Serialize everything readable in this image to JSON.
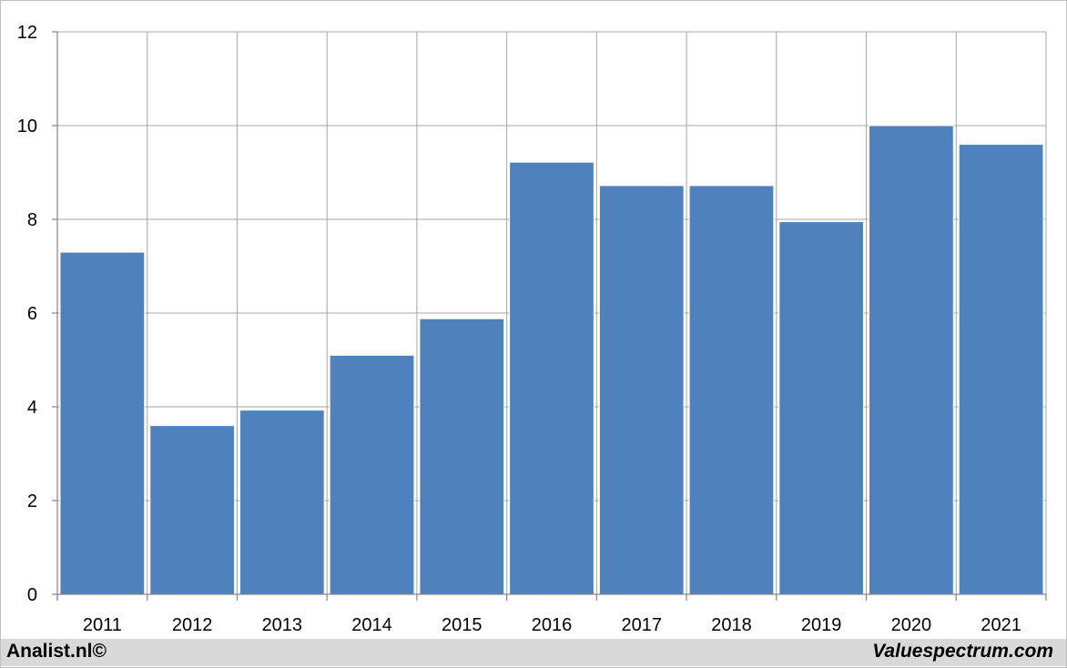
{
  "chart_data": {
    "type": "bar",
    "categories": [
      "2011",
      "2012",
      "2013",
      "2014",
      "2015",
      "2016",
      "2017",
      "2018",
      "2019",
      "2020",
      "2021"
    ],
    "values": [
      7.3,
      3.6,
      3.93,
      5.1,
      5.88,
      9.22,
      8.72,
      8.72,
      7.95,
      10.0,
      9.6
    ],
    "ylim": [
      0,
      12
    ],
    "yticks": [
      "0",
      "2",
      "4",
      "6",
      "8",
      "10",
      "12"
    ],
    "grid": true,
    "bar_color": "#4f81bd",
    "grid_color": "#a6a6a6"
  },
  "footer": {
    "left_text": "Analist.nl©",
    "right_text": "Valuespectrum.com"
  }
}
